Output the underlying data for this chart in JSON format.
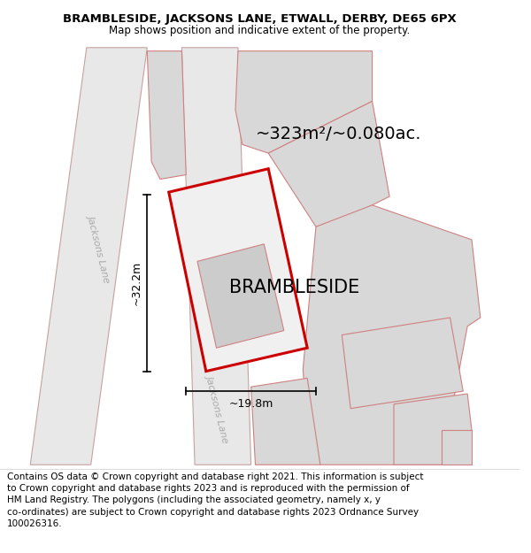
{
  "title_line1": "BRAMBLESIDE, JACKSONS LANE, ETWALL, DERBY, DE65 6PX",
  "title_line2": "Map shows position and indicative extent of the property.",
  "property_label": "BRAMBLESIDE",
  "area_label": "~323m²/~0.080ac.",
  "dim_width_label": "~19.8m",
  "dim_height_label": "~32.2m",
  "road_label_top": "Jacksons Lane",
  "road_label_bottom": "Jacksons Lane",
  "footer_lines": [
    "Contains OS data © Crown copyright and database right 2021. This information is subject",
    "to Crown copyright and database rights 2023 and is reproduced with the permission of",
    "HM Land Registry. The polygons (including the associated geometry, namely x, y",
    "co-ordinates) are subject to Crown copyright and database rights 2023 Ordnance Survey",
    "100026316."
  ],
  "bg_color": "#ffffff",
  "road_fill": "#e8e8e8",
  "road_stroke": "#c8a0a0",
  "plot_fill": "#d8d8d8",
  "plot_stroke": "#d08080",
  "highlight_fill": "#f0f0f0",
  "highlight_stroke": "#cc0000",
  "dim_line_color": "#000000",
  "title_fontsize": 9.5,
  "subtitle_fontsize": 8.5,
  "label_fontsize": 15,
  "area_fontsize": 14,
  "road_label_fontsize": 8,
  "dim_fontsize": 9,
  "footer_fontsize": 7.5
}
